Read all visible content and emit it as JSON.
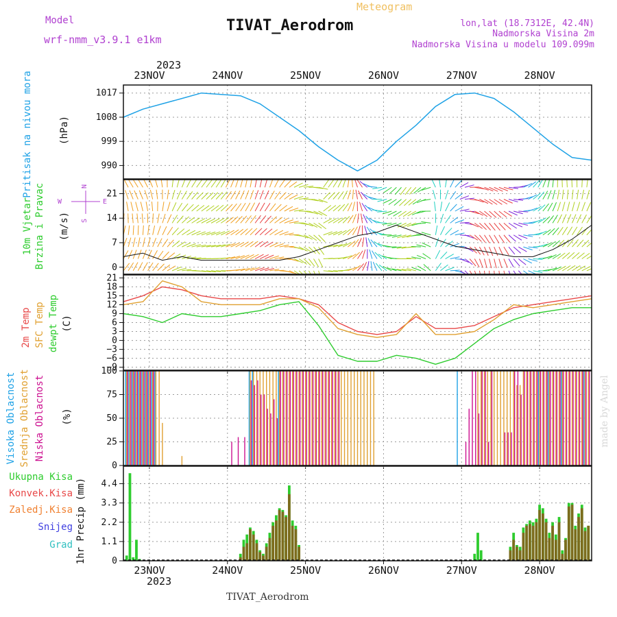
{
  "header": {
    "model_label": "Model",
    "model_name": "wrf-nmm_v3.9.1  e1km",
    "title": "TIVAT_Aerodrom",
    "product": "Meteogram",
    "lonlat": "lon,lat (18.7312E, 42.4N)",
    "elev_station": "Nadmorska Visina 2m",
    "elev_model": "Nadmorska Visina u modelu 109.099m",
    "footer_station": "TIVAT_Aerodrom",
    "credit": "made by Angel"
  },
  "colors": {
    "pressure": "#1fa2e6",
    "temp_2m": "#e84848",
    "temp_sfc": "#e0a030",
    "dewpoint": "#2ecc2e",
    "rain_total": "#2ecc2e",
    "rain_conv": "#e84848",
    "rain_frozen": "#f08030",
    "snow": "#4040e0",
    "graupel": "#30c0c0",
    "cloud_high": "#1fa2e6",
    "cloud_mid": "#e0a030",
    "cloud_low": "#cc1090",
    "ylabel_purple": "#b040d0"
  },
  "time_axis": {
    "top_year": "2023",
    "bottom_year": "2023",
    "days": [
      "23NOV",
      "24NOV",
      "25NOV",
      "26NOV",
      "27NOV",
      "28NOV"
    ],
    "start_hour": 0,
    "end_hour": 144,
    "first_day_offset_hour": 8
  },
  "chart_data": [
    {
      "type": "line",
      "panel": "pressure",
      "title": "",
      "ylabel_lines": [
        "Pritisak na nivou mora"
      ],
      "unit": "(hPa)",
      "ylim": [
        985,
        1020
      ],
      "yticks": [
        990,
        999,
        1008,
        1017
      ],
      "grid": true,
      "x_hours": [
        0,
        6,
        12,
        18,
        24,
        30,
        36,
        42,
        48,
        54,
        60,
        66,
        72,
        78,
        84,
        90,
        96,
        102,
        108,
        114,
        120,
        126,
        132,
        138,
        144
      ],
      "series": [
        {
          "name": "",
          "values": [
            1008,
            1011,
            1013,
            1015,
            1017,
            1016.5,
            1016,
            1013,
            1008,
            1003,
            997,
            992,
            988,
            992,
            999,
            1005,
            1012,
            1016.5,
            1017,
            1015,
            1010,
            1004,
            998,
            993,
            992
          ]
        }
      ]
    },
    {
      "type": "line",
      "panel": "wind",
      "title": "",
      "ylabel_lines": [
        "10m Vjetar",
        "Brzina i Pravac"
      ],
      "unit": "(m/s)",
      "ylim": [
        -2,
        25
      ],
      "yticks": [
        0,
        7,
        14,
        21
      ],
      "compass": [
        "N",
        "W",
        "E",
        "S"
      ],
      "grid": true,
      "x_hours": [
        0,
        6,
        12,
        18,
        24,
        30,
        36,
        42,
        48,
        54,
        60,
        66,
        72,
        78,
        84,
        90,
        96,
        102,
        108,
        114,
        120,
        126,
        132,
        138,
        144
      ],
      "series": [
        {
          "name": "",
          "values": [
            3,
            4,
            2,
            3,
            2,
            2,
            2,
            2,
            2,
            3,
            5,
            7,
            9,
            10,
            12,
            10,
            8,
            6,
            5,
            4,
            3,
            3,
            5,
            8,
            12
          ]
        }
      ]
    },
    {
      "type": "line",
      "panel": "temperature",
      "title": "",
      "ylabel_lines": [
        "2m Temp",
        "SFC Temp",
        "dewpt Temp"
      ],
      "unit": "(C)",
      "ylim": [
        -10,
        22
      ],
      "yticks": [
        -9,
        -6,
        -3,
        0,
        3,
        6,
        9,
        12,
        15,
        18,
        21
      ],
      "grid": true,
      "x_hours": [
        0,
        6,
        12,
        18,
        24,
        30,
        36,
        42,
        48,
        54,
        60,
        66,
        72,
        78,
        84,
        90,
        96,
        102,
        108,
        114,
        120,
        126,
        132,
        138,
        144
      ],
      "series": [
        {
          "name": "2m Temp",
          "values": [
            13,
            15,
            18,
            17,
            15,
            14,
            14,
            14,
            15,
            14,
            12,
            6,
            3,
            2,
            3,
            8,
            4,
            4,
            5,
            8,
            11,
            12,
            13,
            14,
            15
          ]
        },
        {
          "name": "SFC Temp",
          "values": [
            12,
            13,
            20,
            18,
            13,
            12,
            12,
            12,
            14,
            14,
            11,
            4,
            2,
            1,
            2,
            9,
            2,
            2,
            3,
            7,
            12,
            11,
            12,
            13,
            14
          ]
        },
        {
          "name": "dewpt Temp",
          "values": [
            9,
            8,
            6,
            9,
            8,
            8,
            9,
            10,
            12,
            13,
            5,
            -5,
            -7,
            -7,
            -5,
            -6,
            -8,
            -6,
            -1,
            4,
            7,
            9,
            10,
            11,
            11
          ]
        }
      ]
    },
    {
      "type": "bar",
      "panel": "clouds",
      "title": "",
      "ylabel_lines": [
        "Visoka Oblacnost",
        "Srednja Oblacnost",
        "Niska Oblacnost"
      ],
      "unit": "(%)",
      "ylim": [
        0,
        100
      ],
      "yticks": [
        0,
        25,
        50,
        75,
        100
      ],
      "grid": true,
      "x_hours": [
        1,
        2,
        3,
        4,
        5,
        6,
        7,
        8,
        9,
        10,
        11,
        12,
        14,
        18,
        24,
        33,
        35,
        37,
        39,
        40,
        41,
        42,
        43,
        44,
        45,
        46,
        47,
        48,
        49,
        50,
        51,
        52,
        53,
        54,
        55,
        56,
        57,
        58,
        59,
        60,
        61,
        62,
        63,
        64,
        65,
        66,
        67,
        68,
        69,
        70,
        71,
        72,
        73,
        74,
        75,
        76,
        77,
        78,
        79,
        80,
        81,
        82,
        83,
        84,
        85,
        86,
        87,
        88,
        89,
        90,
        91,
        92,
        93,
        94,
        95,
        96,
        97,
        98,
        99,
        100,
        101,
        102,
        103,
        104,
        105,
        106,
        107,
        108,
        109,
        110,
        111,
        112,
        113,
        114,
        115,
        116,
        117,
        118,
        119,
        120,
        121,
        122,
        123,
        124,
        125,
        126,
        127,
        128,
        129,
        130,
        131,
        132,
        133,
        134,
        135,
        136,
        137,
        138,
        139,
        140,
        141,
        142,
        143
      ],
      "series": [
        {
          "name": "Visoka Oblacnost",
          "values": [
            100,
            100,
            100,
            100,
            100,
            100,
            100,
            100,
            100,
            100,
            0,
            0,
            0,
            0,
            0,
            0,
            0,
            0,
            100,
            100,
            0,
            0,
            0,
            0,
            0,
            0,
            0,
            100,
            0,
            0,
            0,
            0,
            0,
            0,
            0,
            0,
            0,
            0,
            0,
            0,
            0,
            0,
            0,
            0,
            0,
            0,
            0,
            0,
            0,
            0,
            0,
            0,
            0,
            0,
            0,
            0,
            0,
            0,
            0,
            0,
            0,
            0,
            0,
            0,
            0,
            0,
            0,
            0,
            0,
            0,
            0,
            0,
            0,
            0,
            0,
            0,
            0,
            0,
            0,
            0,
            0,
            0,
            100,
            0,
            0,
            0,
            0,
            0,
            0,
            0,
            0,
            0,
            0,
            0,
            0,
            0,
            0,
            0,
            0,
            0,
            0,
            0,
            0,
            0,
            0,
            0,
            0,
            100,
            0,
            0,
            100,
            0,
            0,
            0,
            100,
            0,
            0,
            0,
            0,
            0,
            0,
            100,
            0
          ]
        },
        {
          "name": "Srednja Oblacnost",
          "values": [
            100,
            100,
            100,
            100,
            100,
            100,
            100,
            100,
            100,
            100,
            100,
            45,
            0,
            10,
            0,
            0,
            0,
            0,
            100,
            100,
            100,
            100,
            100,
            100,
            100,
            100,
            100,
            100,
            100,
            100,
            100,
            100,
            100,
            100,
            100,
            100,
            100,
            100,
            100,
            100,
            100,
            100,
            100,
            100,
            100,
            100,
            100,
            100,
            100,
            100,
            100,
            100,
            100,
            100,
            100,
            100,
            100,
            0,
            0,
            0,
            0,
            0,
            0,
            0,
            0,
            0,
            0,
            0,
            0,
            0,
            0,
            0,
            0,
            0,
            0,
            0,
            0,
            0,
            0,
            0,
            0,
            0,
            0,
            0,
            0,
            0,
            0,
            0,
            100,
            100,
            100,
            100,
            100,
            100,
            100,
            100,
            100,
            100,
            100,
            100,
            85,
            85,
            100,
            100,
            100,
            100,
            100,
            100,
            100,
            100,
            100,
            100,
            100,
            100,
            100,
            100,
            100,
            100,
            100,
            100,
            100,
            100,
            100
          ]
        },
        {
          "name": "Niska Oblacnost",
          "values": [
            100,
            100,
            100,
            100,
            100,
            100,
            100,
            100,
            100,
            0,
            0,
            0,
            0,
            0,
            0,
            25,
            30,
            30,
            90,
            85,
            90,
            75,
            75,
            60,
            55,
            70,
            50,
            100,
            100,
            100,
            100,
            100,
            100,
            100,
            100,
            100,
            100,
            100,
            100,
            100,
            100,
            100,
            100,
            100,
            100,
            100,
            0,
            0,
            0,
            0,
            0,
            0,
            0,
            0,
            0,
            0,
            0,
            0,
            0,
            0,
            0,
            0,
            0,
            0,
            0,
            0,
            0,
            0,
            0,
            0,
            0,
            0,
            0,
            0,
            0,
            0,
            0,
            0,
            0,
            0,
            0,
            0,
            0,
            0,
            25,
            60,
            100,
            100,
            55,
            100,
            100,
            25,
            100,
            0,
            0,
            0,
            35,
            35,
            35,
            100,
            100,
            75,
            100,
            100,
            100,
            100,
            100,
            100,
            100,
            100,
            100,
            100,
            100,
            100,
            100,
            100,
            100,
            100,
            100,
            100,
            100,
            100,
            100
          ]
        }
      ]
    },
    {
      "type": "bar",
      "panel": "precip",
      "title": "",
      "ylabel_lines": [
        "1hr Precip (mm)"
      ],
      "unit": "",
      "legend": [
        "Ukupna  Kisa",
        "Konvek.Kisa",
        "Zaledj.Kisa",
        "Snijeg",
        "Grad"
      ],
      "ylim": [
        0,
        5.4
      ],
      "yticks": [
        0,
        1.1,
        2.2,
        3.3,
        4.4
      ],
      "grid": true,
      "x_hours": [
        1,
        2,
        3,
        4,
        5,
        36,
        37,
        38,
        39,
        40,
        41,
        42,
        43,
        44,
        45,
        46,
        47,
        48,
        49,
        50,
        51,
        52,
        53,
        54,
        108,
        109,
        110,
        119,
        120,
        121,
        122,
        123,
        124,
        125,
        126,
        127,
        128,
        129,
        130,
        131,
        132,
        133,
        134,
        135,
        136,
        137,
        138,
        139,
        140,
        141,
        142,
        143
      ],
      "series": [
        {
          "name": "Ukupna  Kisa",
          "values": [
            0.3,
            5.0,
            0.2,
            1.2,
            0.1,
            0.4,
            1.2,
            1.5,
            1.9,
            1.7,
            1.2,
            0.6,
            0.4,
            1.0,
            1.6,
            2.2,
            2.6,
            3.0,
            2.9,
            2.6,
            4.3,
            2.3,
            2.0,
            0.9,
            0.4,
            1.6,
            0.6,
            0.8,
            1.6,
            0.9,
            0.8,
            1.9,
            2.1,
            2.3,
            2.2,
            2.4,
            3.2,
            3.0,
            2.4,
            1.6,
            2.2,
            1.5,
            2.5,
            0.6,
            1.3,
            3.3,
            3.3,
            2.0,
            2.7,
            3.2,
            1.9,
            2.0
          ]
        },
        {
          "name": "Konvek.Kisa",
          "values": [
            0,
            0,
            0,
            0,
            0,
            0.2,
            0.8,
            1.0,
            1.8,
            1.5,
            1.0,
            0.5,
            0.3,
            0.8,
            1.3,
            2.0,
            2.3,
            2.9,
            2.8,
            2.5,
            3.8,
            2.0,
            1.8,
            0.8,
            0,
            0,
            0,
            0.6,
            1.2,
            0.8,
            0.6,
            1.6,
            2.0,
            2.1,
            2.0,
            2.2,
            2.9,
            2.7,
            2.2,
            1.3,
            2.0,
            1.2,
            2.2,
            0.4,
            1.2,
            3.1,
            3.2,
            1.8,
            2.5,
            3.0,
            1.7,
            2.0
          ]
        }
      ]
    }
  ]
}
